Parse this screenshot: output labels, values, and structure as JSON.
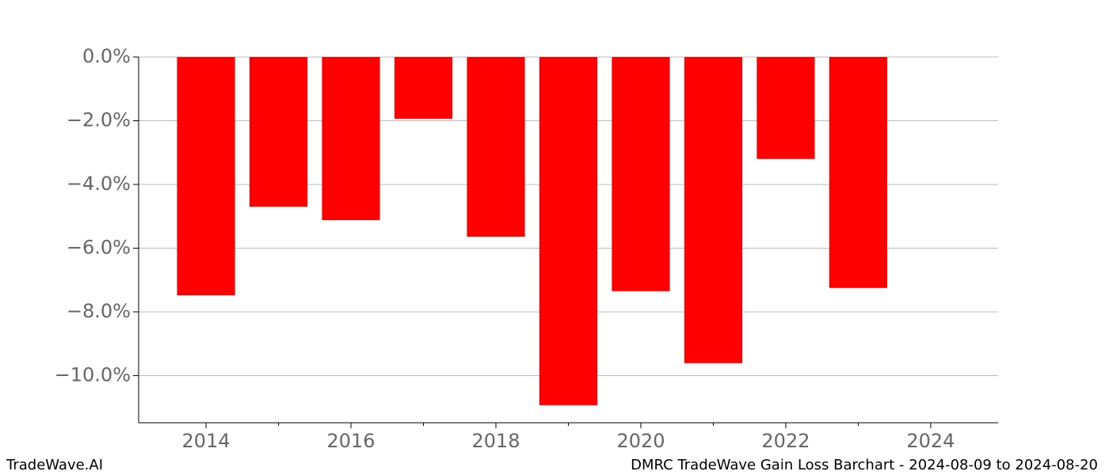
{
  "chart_data": {
    "type": "bar",
    "x": [
      2014,
      2015,
      2016,
      2017,
      2018,
      2019,
      2020,
      2021,
      2022,
      2023
    ],
    "values": [
      -7.48,
      -4.7,
      -5.12,
      -1.94,
      -5.64,
      -10.93,
      -7.35,
      -9.61,
      -3.2,
      -7.25
    ],
    "color": "#ff0000",
    "bar_width": 0.8,
    "xlim": [
      2013.07,
      2024.93
    ],
    "xticks": [
      2014,
      2016,
      2018,
      2020,
      2022,
      2024
    ],
    "xminorticks": [
      2015,
      2017,
      2019,
      2021,
      2023
    ],
    "ylim": [
      -11.48,
      0
    ],
    "yticks": [
      {
        "value": 0,
        "label": "0.0%"
      },
      {
        "value": -2,
        "label": "−2.0%"
      },
      {
        "value": -4,
        "label": "−4.0%"
      },
      {
        "value": -6,
        "label": "−6.0%"
      },
      {
        "value": -8,
        "label": "−8.0%"
      },
      {
        "value": -10,
        "label": "−10.0%"
      }
    ],
    "grid": true
  },
  "footer": {
    "left": "TradeWave.AI",
    "right": "DMRC TradeWave Gain Loss Barchart - 2024-08-09 to 2024-08-20"
  }
}
